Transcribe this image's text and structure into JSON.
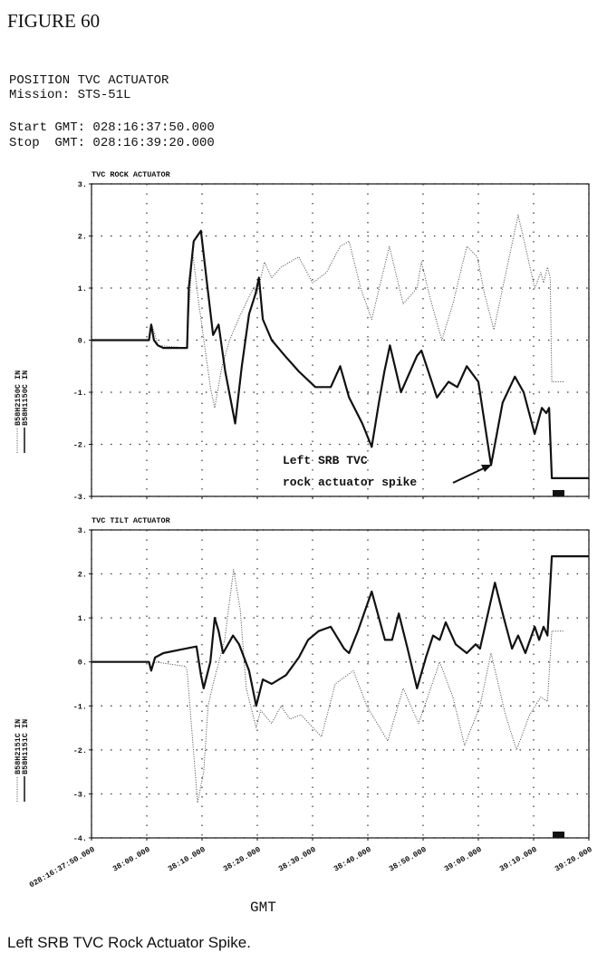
{
  "figure_label": "FIGURE 60",
  "header": {
    "title": "POSITION TVC ACTUATOR",
    "mission": "Mission: STS-51L",
    "start": "Start GMT: 028:16:37:50.000",
    "stop": "Stop  GMT: 028:16:39:20.000"
  },
  "caption": "Left SRB TVC Rock Actuator Spike.",
  "chart_data": [
    {
      "type": "line",
      "title": "TVC ROCK ACTUATOR",
      "grid": true,
      "xlim": [
        0,
        90
      ],
      "xticks": [
        0,
        10,
        20,
        30,
        40,
        50,
        60,
        70,
        80,
        90
      ],
      "ylim": [
        -3,
        3
      ],
      "yticks": [
        {
          "value": 3,
          "label": "3."
        },
        {
          "value": 2,
          "label": "2."
        },
        {
          "value": 1,
          "label": "1."
        },
        {
          "value": 0,
          "label": "0."
        },
        {
          "value": -1,
          "label": "-1."
        },
        {
          "value": -2,
          "label": "-2."
        },
        {
          "value": -3,
          "label": "-3."
        }
      ],
      "annotation": [
        "Left SRB TVC",
        "rock actuator spike"
      ],
      "series": [
        {
          "name": "B58H2150C IN",
          "color": "#444",
          "style": "dotted",
          "x": [
            0,
            10.4,
            10.9,
            11.5,
            12,
            17.2,
            18.3,
            19.3,
            21.5,
            22.3,
            23.6,
            25,
            27,
            29.3,
            30,
            31.3,
            32.6,
            34.3,
            37.5,
            40,
            42.5,
            45,
            46.6,
            48.7,
            50.7,
            52.3,
            53.9,
            56.4,
            58.9,
            59.7,
            61.3,
            63.4,
            65.4,
            67.9,
            69.8,
            71.1,
            72.8,
            75.2,
            77.2,
            78.5,
            80.2,
            81.3,
            81.8,
            82.5,
            83,
            83.3,
            85.4
          ],
          "values": [
            0,
            0,
            0.3,
            0.1,
            -0.1,
            -0.15,
            1.7,
            0.8,
            -0.9,
            -1.3,
            -0.5,
            0,
            0.5,
            1.0,
            0.9,
            1.5,
            1.2,
            1.4,
            1.6,
            1.1,
            1.3,
            1.8,
            1.9,
            1.0,
            0.4,
            1.1,
            1.8,
            0.7,
            1.0,
            1.5,
            0.8,
            0,
            0.7,
            1.8,
            1.6,
            0.9,
            0.2,
            1.4,
            2.4,
            1.8,
            1.0,
            1.3,
            1.1,
            1.4,
            1.2,
            -0.8,
            -0.8
          ]
        },
        {
          "name": "B58H1150C IN",
          "color": "#111",
          "style": "solid",
          "x": [
            0,
            10.4,
            10.8,
            11.3,
            12,
            13,
            17.3,
            17.6,
            18.5,
            19.8,
            21,
            22,
            23,
            24.2,
            26,
            27.2,
            28.5,
            29.7,
            30.3,
            31,
            32.6,
            35,
            37.5,
            40.5,
            43.3,
            45,
            46.6,
            49,
            50.7,
            52,
            53,
            54,
            56,
            58.9,
            59.7,
            62.5,
            64.6,
            66.2,
            67.9,
            70,
            72.3,
            74.4,
            76.6,
            78.2,
            80.2,
            81.5,
            82.3,
            82.8,
            83.3,
            90
          ],
          "values": [
            0,
            0,
            0.3,
            0,
            -0.1,
            -0.15,
            -0.15,
            1.0,
            1.9,
            2.1,
            1.0,
            0.1,
            0.3,
            -0.6,
            -1.6,
            -0.5,
            0.5,
            0.9,
            1.2,
            0.4,
            0,
            -0.3,
            -0.6,
            -0.9,
            -0.9,
            -0.5,
            -1.1,
            -1.6,
            -2.05,
            -1.2,
            -0.6,
            -0.1,
            -1.0,
            -0.3,
            -0.2,
            -1.1,
            -0.8,
            -0.9,
            -0.5,
            -0.8,
            -2.4,
            -1.2,
            -0.7,
            -1.0,
            -1.8,
            -1.3,
            -1.4,
            -1.3,
            -2.65,
            -2.65
          ]
        }
      ]
    },
    {
      "type": "line",
      "title": "TVC TILT ACTUATOR",
      "grid": true,
      "xlabel": "GMT",
      "xlim": [
        0,
        90
      ],
      "xticks": [
        {
          "value": 0,
          "label": "028:16:37:50.000"
        },
        {
          "value": 10,
          "label": "38:00.000"
        },
        {
          "value": 20,
          "label": "38:10.000"
        },
        {
          "value": 30,
          "label": "38:20.000"
        },
        {
          "value": 40,
          "label": "38:30.000"
        },
        {
          "value": 50,
          "label": "38:40.000"
        },
        {
          "value": 60,
          "label": "38:50.000"
        },
        {
          "value": 70,
          "label": "39:00.000"
        },
        {
          "value": 80,
          "label": "39:10.000"
        },
        {
          "value": 90,
          "label": "39:20.000"
        }
      ],
      "ylim": [
        -4,
        3
      ],
      "yticks": [
        {
          "value": 3,
          "label": "3."
        },
        {
          "value": 2,
          "label": "2."
        },
        {
          "value": 1,
          "label": "1."
        },
        {
          "value": 0,
          "label": "0."
        },
        {
          "value": -1,
          "label": "-1."
        },
        {
          "value": -2,
          "label": "-2."
        },
        {
          "value": -3,
          "label": "-3."
        },
        {
          "value": -4,
          "label": "-4."
        }
      ],
      "series": [
        {
          "name": "B58H2151C IN",
          "color": "#444",
          "style": "dotted",
          "x": [
            0,
            10.4,
            10.8,
            11.5,
            17,
            17.3,
            19.2,
            20.3,
            21.1,
            22,
            24.1,
            25.7,
            26.9,
            28,
            29.8,
            30.6,
            32.6,
            34.3,
            35.9,
            37.9,
            41.6,
            44.1,
            47.4,
            49.8,
            53.6,
            56.4,
            59.2,
            63,
            65.4,
            67.5,
            70.3,
            72.3,
            74.9,
            76.9,
            79.3,
            81.3,
            82.5,
            83.3,
            85.4
          ],
          "values": [
            0,
            0,
            -0.15,
            0,
            -0.1,
            -0.2,
            -3.2,
            -2.5,
            -1.0,
            -0.5,
            0.5,
            2.1,
            1.2,
            -0.6,
            -1.5,
            -1.1,
            -1.4,
            -1.0,
            -1.3,
            -1.2,
            -1.7,
            -0.5,
            -0.2,
            -1.0,
            -1.8,
            -0.6,
            -1.4,
            0,
            -0.8,
            -1.9,
            -1.0,
            0.2,
            -1.2,
            -2.0,
            -1.2,
            -0.8,
            -0.9,
            0.7,
            0.7
          ]
        },
        {
          "name": "B58H1151C IN",
          "color": "#111",
          "style": "solid",
          "x": [
            0,
            10.4,
            10.8,
            11.5,
            13,
            17,
            19,
            19.8,
            20.3,
            21.5,
            22.3,
            23,
            23.8,
            25.6,
            26.7,
            28.5,
            29.8,
            31,
            32.6,
            35.2,
            37.5,
            39.2,
            41.1,
            43.3,
            45.7,
            46.6,
            48.2,
            50.7,
            53.1,
            54.4,
            55.6,
            57.2,
            58.9,
            60.5,
            61.8,
            63,
            64.1,
            65.9,
            67.9,
            69.5,
            70.3,
            73,
            74.6,
            76.1,
            77.2,
            78.5,
            80.2,
            81,
            81.8,
            82.5,
            83.3,
            90
          ],
          "values": [
            0,
            0,
            -0.2,
            0.1,
            0.2,
            0.3,
            0.35,
            -0.3,
            -0.6,
            0,
            1.0,
            0.7,
            0.2,
            0.6,
            0.4,
            -0.2,
            -1.0,
            -0.4,
            -0.5,
            -0.3,
            0.1,
            0.5,
            0.7,
            0.8,
            0.3,
            0.2,
            0.7,
            1.6,
            0.5,
            0.5,
            1.1,
            0.3,
            -0.6,
            0.1,
            0.6,
            0.5,
            0.9,
            0.4,
            0.2,
            0.4,
            0.3,
            1.8,
            1.0,
            0.3,
            0.6,
            0.2,
            0.8,
            0.5,
            0.8,
            0.6,
            2.4,
            2.4
          ]
        }
      ]
    }
  ]
}
